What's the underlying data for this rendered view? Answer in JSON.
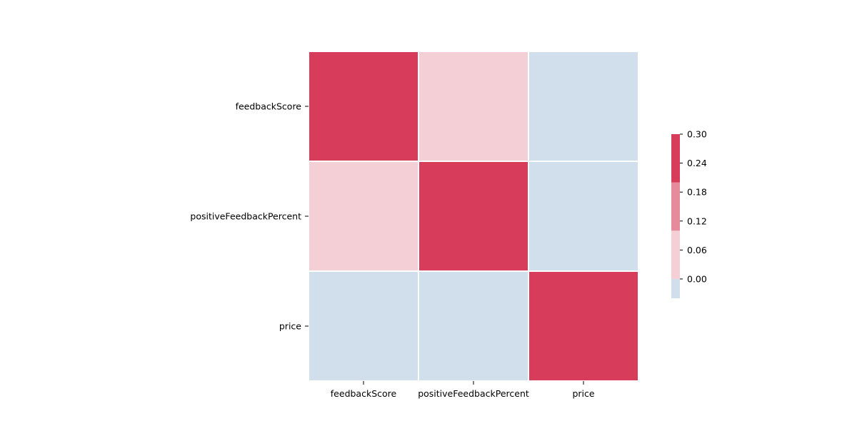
{
  "chart_data": {
    "type": "heatmap",
    "title": "",
    "xlabel": "",
    "ylabel": "",
    "rows": [
      "feedbackScore",
      "positiveFeedbackPercent",
      "price"
    ],
    "columns": [
      "feedbackScore",
      "positiveFeedbackPercent",
      "price"
    ],
    "values": [
      [
        1.0,
        0.04,
        -0.02
      ],
      [
        0.04,
        1.0,
        -0.02
      ],
      [
        -0.02,
        -0.02,
        1.0
      ]
    ],
    "colorbar": {
      "vmin": -0.04,
      "vmax": 0.3,
      "ticks": [
        "0.00",
        "0.06",
        "0.12",
        "0.18",
        "0.24",
        "0.30"
      ],
      "bins": [
        {
          "from": -0.04,
          "to": 0.0,
          "color": "#d1dfec"
        },
        {
          "from": 0.0,
          "to": 0.1,
          "color": "#f5cfd6"
        },
        {
          "from": 0.1,
          "to": 0.2,
          "color": "#e68b9b"
        },
        {
          "from": 0.2,
          "to": 1.0,
          "color": "#d73c5b"
        }
      ]
    },
    "grid": false,
    "legend": "colorbar-right"
  }
}
